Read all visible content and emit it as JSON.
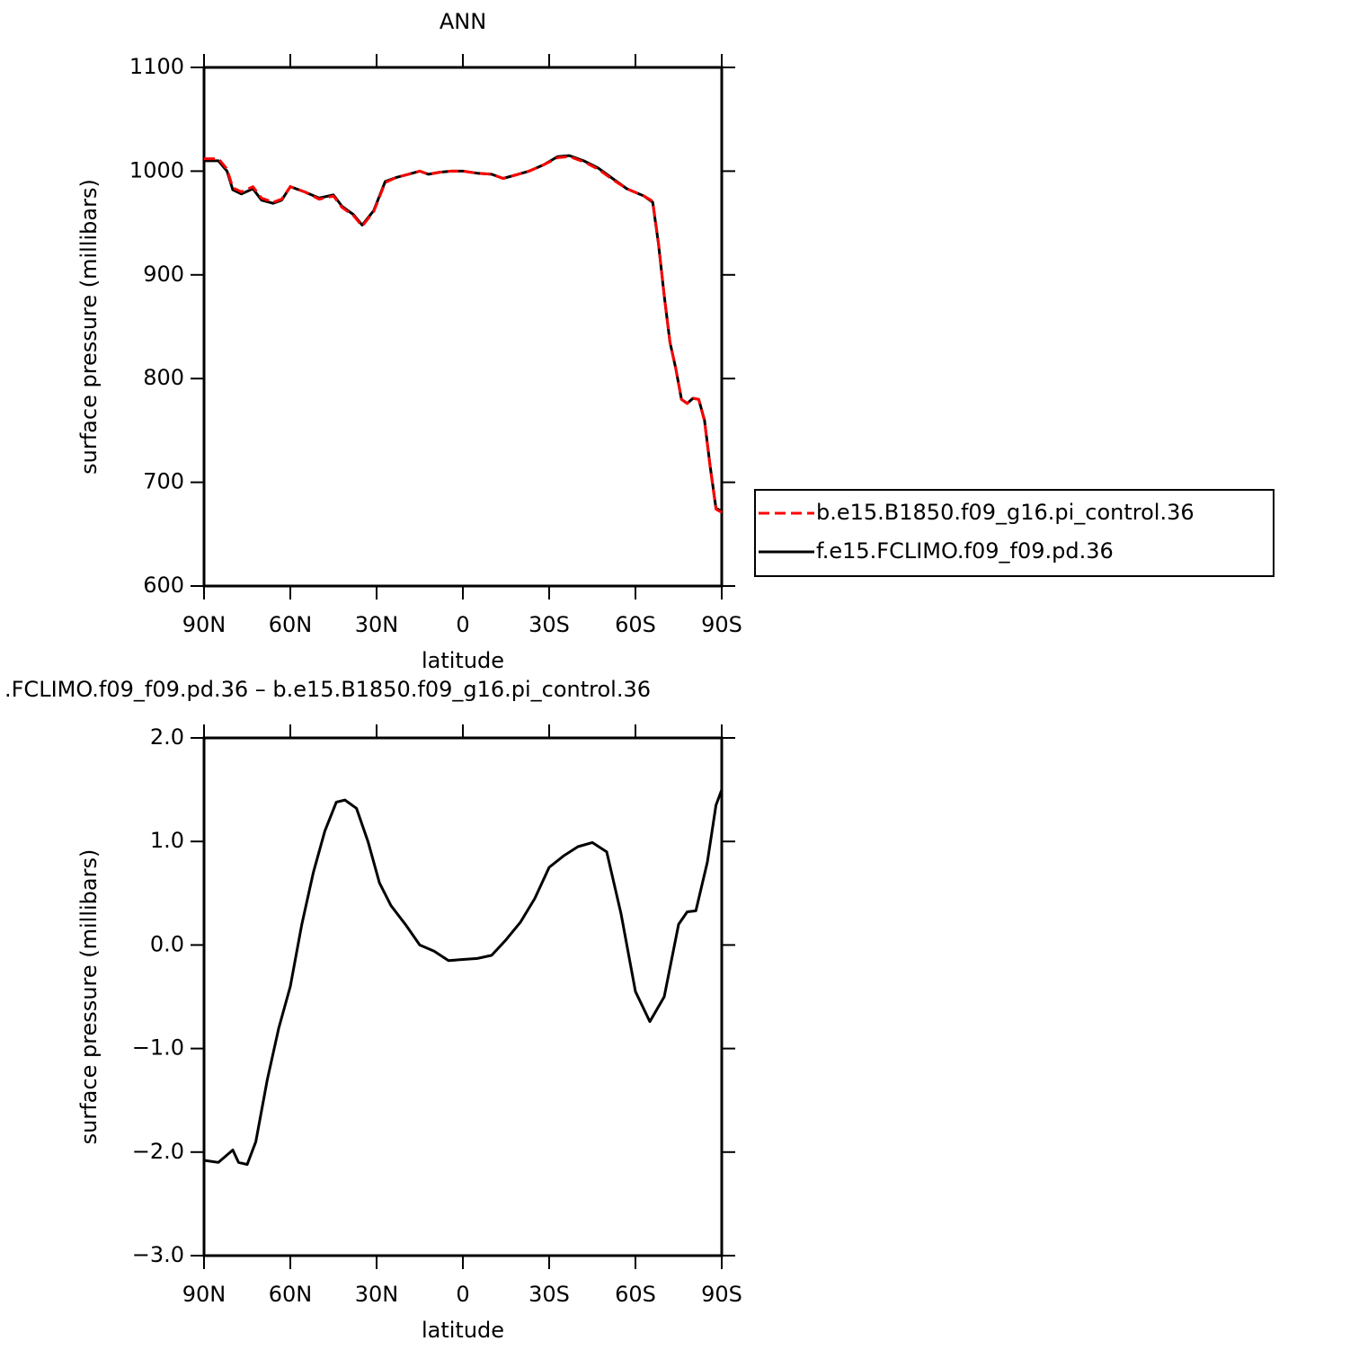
{
  "chart_data": [
    {
      "type": "line",
      "title": "ANN",
      "xlabel": "latitude",
      "ylabel": "surface pressure (millibars)",
      "xlim": [
        90,
        -90
      ],
      "xticks": [
        {
          "value": 90,
          "label": "90N"
        },
        {
          "value": 60,
          "label": "60N"
        },
        {
          "value": 30,
          "label": "30N"
        },
        0,
        {
          "value": -30,
          "label": "30S"
        },
        {
          "value": -60,
          "label": "60S"
        },
        {
          "value": -90,
          "label": "90S"
        }
      ],
      "ylim": [
        600,
        1100
      ],
      "yticks": [
        600,
        700,
        800,
        900,
        1000,
        1100
      ],
      "legend": "right",
      "x": [
        90,
        85,
        82,
        80,
        77,
        73,
        70,
        66,
        63,
        60,
        55,
        50,
        45,
        42,
        38,
        35,
        31,
        27,
        23,
        19,
        15,
        12,
        8,
        4,
        0,
        -5,
        -10,
        -14,
        -18,
        -23,
        -28,
        -33,
        -37,
        -42,
        -47,
        -52,
        -57,
        -63,
        -66,
        -68,
        -70,
        -72,
        -74,
        -76,
        -78,
        -80,
        -82,
        -84,
        -86,
        -88,
        -90
      ],
      "series": [
        {
          "name": "b.e15.B1850.f09_g16.pi_control.36",
          "color": "#ff0000",
          "line_style": "dashed",
          "values": [
            1012,
            1012,
            1002,
            984,
            980,
            985,
            974,
            970,
            973,
            985,
            980,
            973,
            976,
            965,
            957,
            947,
            961,
            989,
            994,
            997,
            1000,
            997,
            999,
            1000,
            1000,
            998,
            997,
            993,
            996,
            1000,
            1006,
            1013,
            1014,
            1009,
            1002,
            992,
            983,
            976,
            971,
            931,
            880,
            835,
            810,
            780,
            776,
            781,
            780,
            759,
            714,
            674,
            671
          ]
        },
        {
          "name": "f.e15.FCLIMO.f09_f09.pd.36",
          "color": "#000000",
          "line_style": "solid",
          "values": [
            1010,
            1010,
            1000,
            982,
            978,
            983,
            972,
            969,
            972,
            985,
            980,
            974,
            977,
            966,
            958,
            948,
            962,
            990,
            994,
            997,
            1000,
            997,
            999,
            1000,
            1000,
            998,
            997,
            993,
            996,
            1000,
            1006,
            1014,
            1015,
            1010,
            1003,
            993,
            983,
            976,
            970,
            930,
            880,
            835,
            810,
            780,
            776,
            781,
            780,
            760,
            715,
            675,
            672
          ]
        }
      ]
    },
    {
      "type": "line",
      "title": ".FCLIMO.f09_f09.pd.36 – b.e15.B1850.f09_g16.pi_control.36",
      "xlabel": "latitude",
      "ylabel": "surface pressure (millibars)",
      "xlim": [
        90,
        -90
      ],
      "xticks": [
        {
          "value": 90,
          "label": "90N"
        },
        {
          "value": 60,
          "label": "60N"
        },
        {
          "value": 30,
          "label": "30N"
        },
        0,
        {
          "value": -30,
          "label": "30S"
        },
        {
          "value": -60,
          "label": "60S"
        },
        {
          "value": -90,
          "label": "90S"
        }
      ],
      "ylim": [
        -3,
        2
      ],
      "yticks": [
        {
          "value": -3,
          "label": "−3.0"
        },
        {
          "value": -2,
          "label": "−2.0"
        },
        {
          "value": -1,
          "label": "−1.0"
        },
        {
          "value": 0,
          "label": "0.0"
        },
        {
          "value": 1,
          "label": "1.0"
        },
        {
          "value": 2,
          "label": "2.0"
        }
      ],
      "x": [
        90,
        85,
        80,
        78,
        75,
        72,
        68,
        64,
        60,
        56,
        52,
        48,
        44,
        41,
        37,
        33,
        29,
        25,
        20,
        15,
        10,
        5,
        0,
        -5,
        -10,
        -15,
        -20,
        -25,
        -30,
        -35,
        -40,
        -45,
        -50,
        -55,
        -60,
        -65,
        -70,
        -75,
        -78,
        -81,
        -85,
        -88,
        -90
      ],
      "series": [
        {
          "color": "#000000",
          "line_style": "solid",
          "values": [
            -2.08,
            -2.1,
            -1.98,
            -2.1,
            -2.12,
            -1.9,
            -1.3,
            -0.8,
            -0.4,
            0.2,
            0.7,
            1.1,
            1.38,
            1.4,
            1.32,
            1.0,
            0.6,
            0.38,
            0.2,
            0.0,
            -0.06,
            -0.15,
            -0.14,
            -0.13,
            -0.1,
            0.05,
            0.22,
            0.45,
            0.75,
            0.86,
            0.95,
            0.99,
            0.9,
            0.3,
            -0.45,
            -0.74,
            -0.5,
            0.2,
            0.32,
            0.33,
            0.8,
            1.35,
            1.5
          ]
        }
      ]
    }
  ]
}
